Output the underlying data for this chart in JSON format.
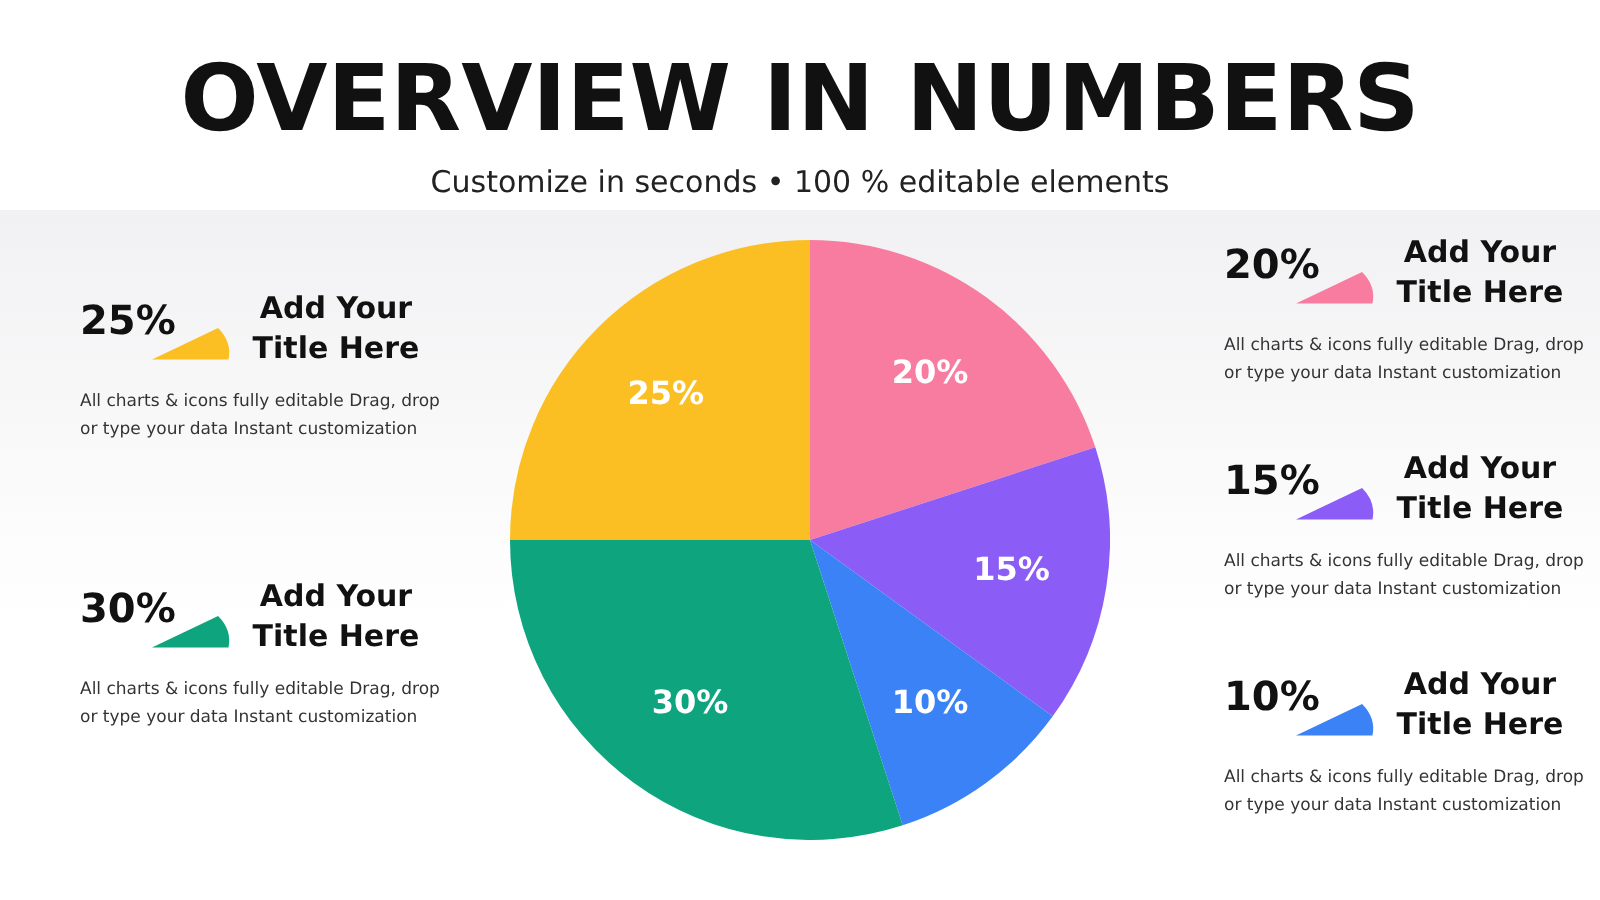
{
  "chart_data": {
    "type": "pie",
    "title": "OVERVIEW IN NUMBERS",
    "subtitle": "Customize in seconds • 100 % editable elements",
    "categories": [
      "Add Your Title Here",
      "Add Your Title Here",
      "Add Your Title Here",
      "Add Your Title Here",
      "Add Your Title Here"
    ],
    "values": [
      20,
      15,
      10,
      30,
      25
    ],
    "value_labels": [
      "20%",
      "15%",
      "10%",
      "30%",
      "25%"
    ],
    "colors": [
      "#f77ca0",
      "#8b5cf6",
      "#3b82f6",
      "#0ea47e",
      "#fbbf24"
    ],
    "annotations": [
      "All charts & icons fully editable Drag, drop or type your data Instant customization",
      "All charts & icons fully editable Drag, drop or type your data Instant customization",
      "All charts & icons fully editable Drag, drop or type your data Instant customization",
      "All charts & icons fully editable Drag, drop or type your data Instant customization",
      "All charts & icons fully editable Drag, drop or type your data Instant customization"
    ],
    "legend": "right"
  }
}
